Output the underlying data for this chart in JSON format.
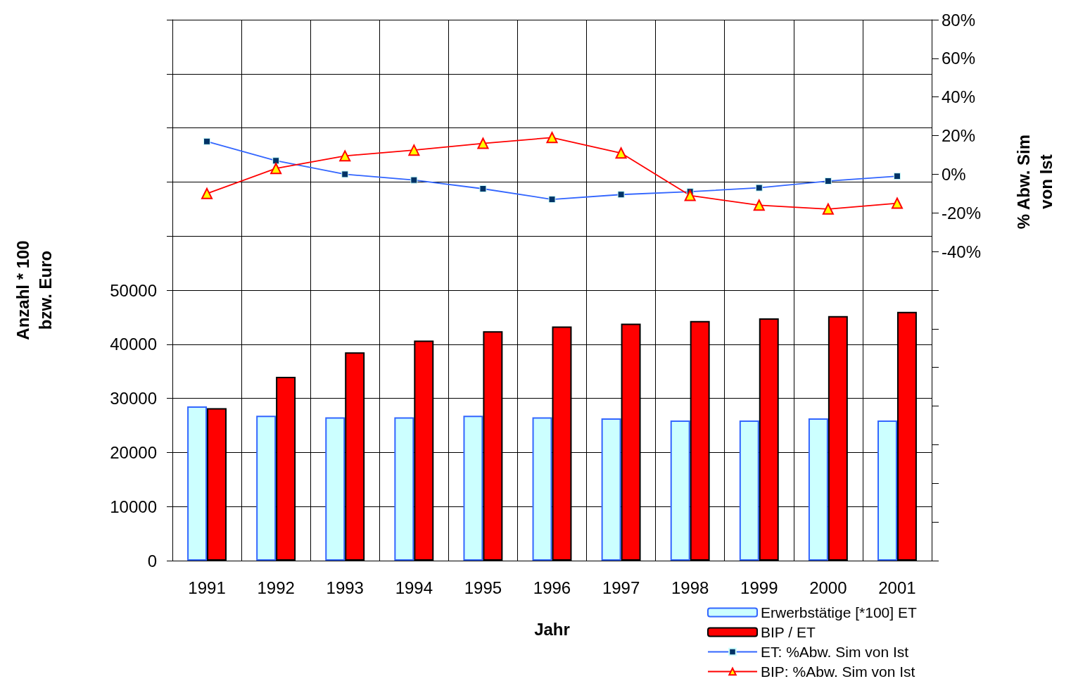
{
  "chart_data": {
    "type": "bar",
    "xlabel": "Jahr",
    "ylabel": "Anzahl * 100\nbzw. Euro",
    "y2label": "% Abw. Sim\nvon Ist",
    "categories": [
      "1991",
      "1992",
      "1993",
      "1994",
      "1995",
      "1996",
      "1997",
      "1998",
      "1999",
      "2000",
      "2001"
    ],
    "series": [
      {
        "name": "Erwerbstätige [*100] ET",
        "color": "#ccffff",
        "values": [
          28500,
          26800,
          26500,
          26500,
          26800,
          26500,
          26300,
          25900,
          25900,
          26300,
          25900
        ]
      },
      {
        "name": "BIP / ET",
        "color": "#ff0000",
        "values": [
          28200,
          34000,
          38500,
          40700,
          42400,
          43300,
          43800,
          44300,
          44800,
          45200,
          46000
        ]
      },
      {
        "name": "ET: %Abw. Sim von Ist",
        "type": "line",
        "axis": "y2",
        "marker": "square",
        "color": "#3366ff",
        "values": [
          17,
          7,
          0,
          -3,
          -7.5,
          -13,
          -10.5,
          -9,
          -7,
          -3.5,
          -1
        ]
      },
      {
        "name": "BIP: %Abw. Sim von Ist",
        "type": "line",
        "axis": "y2",
        "marker": "triangle",
        "color": "#ff0000",
        "values": [
          -10,
          3,
          9.5,
          12.5,
          16,
          19,
          11,
          -11,
          -16,
          -18,
          -15
        ]
      }
    ],
    "ylim": [
      0,
      100000
    ],
    "yticks": [
      0,
      10000,
      20000,
      30000,
      40000,
      50000,
      {
        "value": 60000,
        "label": null
      },
      {
        "value": 70000,
        "label": null
      },
      {
        "value": 80000,
        "label": null
      },
      {
        "value": 90000,
        "label": null
      },
      {
        "value": 100000,
        "label": null
      }
    ],
    "y2lim": [
      -200,
      80
    ],
    "y2ticks": [
      {
        "value": -200,
        "label": null
      },
      {
        "value": -180,
        "label": null
      },
      {
        "value": -160,
        "label": null
      },
      {
        "value": -140,
        "label": null
      },
      {
        "value": -120,
        "label": null
      },
      {
        "value": -100,
        "label": null
      },
      {
        "value": -80,
        "label": null
      },
      {
        "value": -60,
        "label": null
      },
      {
        "value": -40,
        "label": "-40%"
      },
      {
        "value": -20,
        "label": "-20%"
      },
      {
        "value": 0,
        "label": "0%"
      },
      {
        "value": 20,
        "label": "20%"
      },
      {
        "value": 40,
        "label": "40%"
      },
      {
        "value": 60,
        "label": "60%"
      },
      {
        "value": 80,
        "label": "80%"
      }
    ],
    "grid": true,
    "legend": "bottom right"
  }
}
